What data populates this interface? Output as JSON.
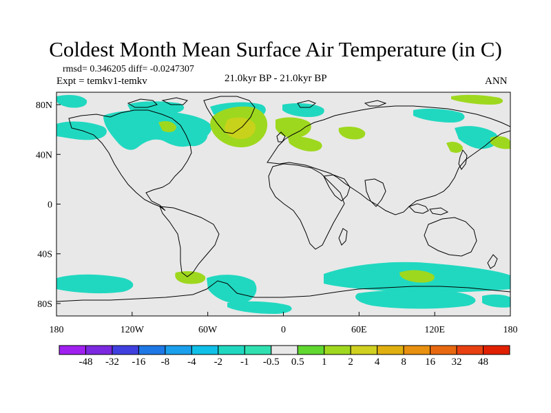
{
  "title": "Coldest Month Mean Surface Air Temperature (in C)",
  "stats": "rmsd= 0.346205  diff= -0.0247307",
  "experiment": "Expt = temkv1-temkv",
  "period": "21.0kyr BP - 21.0kyr BP",
  "season": "ANN",
  "y_ticks": [
    "80N",
    "40N",
    "0",
    "40S",
    "80S"
  ],
  "x_ticks": [
    "180",
    "120W",
    "60W",
    "0",
    "60E",
    "120E",
    "180"
  ],
  "colorbar": {
    "labels": [
      "-48",
      "-32",
      "-16",
      "-8",
      "-4",
      "-2",
      "-1",
      "-0.5",
      "0.5",
      "1",
      "2",
      "4",
      "8",
      "16",
      "32",
      "48"
    ],
    "colors": [
      "#a020f0",
      "#7b28e0",
      "#4040e0",
      "#1e78e6",
      "#1aa0ec",
      "#10c0e8",
      "#20d8c0",
      "#30e0b0",
      "#e8e8e8",
      "#60d830",
      "#a0d820",
      "#d0d020",
      "#e0b010",
      "#e89010",
      "#e86810",
      "#e84010",
      "#e02000"
    ]
  },
  "colors": {
    "background": "#e8e8e8",
    "cool_anomaly": "#20d8c0",
    "warm_anomaly": "#9ed81e",
    "strong_warm_anomaly": "#c8d21a",
    "coastline": "#000000"
  },
  "map_data": {
    "projection": "cylindrical-equidistant",
    "lon_range": [
      -180,
      180
    ],
    "lat_range": [
      -90,
      90
    ],
    "variable": "Coldest Month Mean Surface Air Temperature difference",
    "units": "C"
  }
}
